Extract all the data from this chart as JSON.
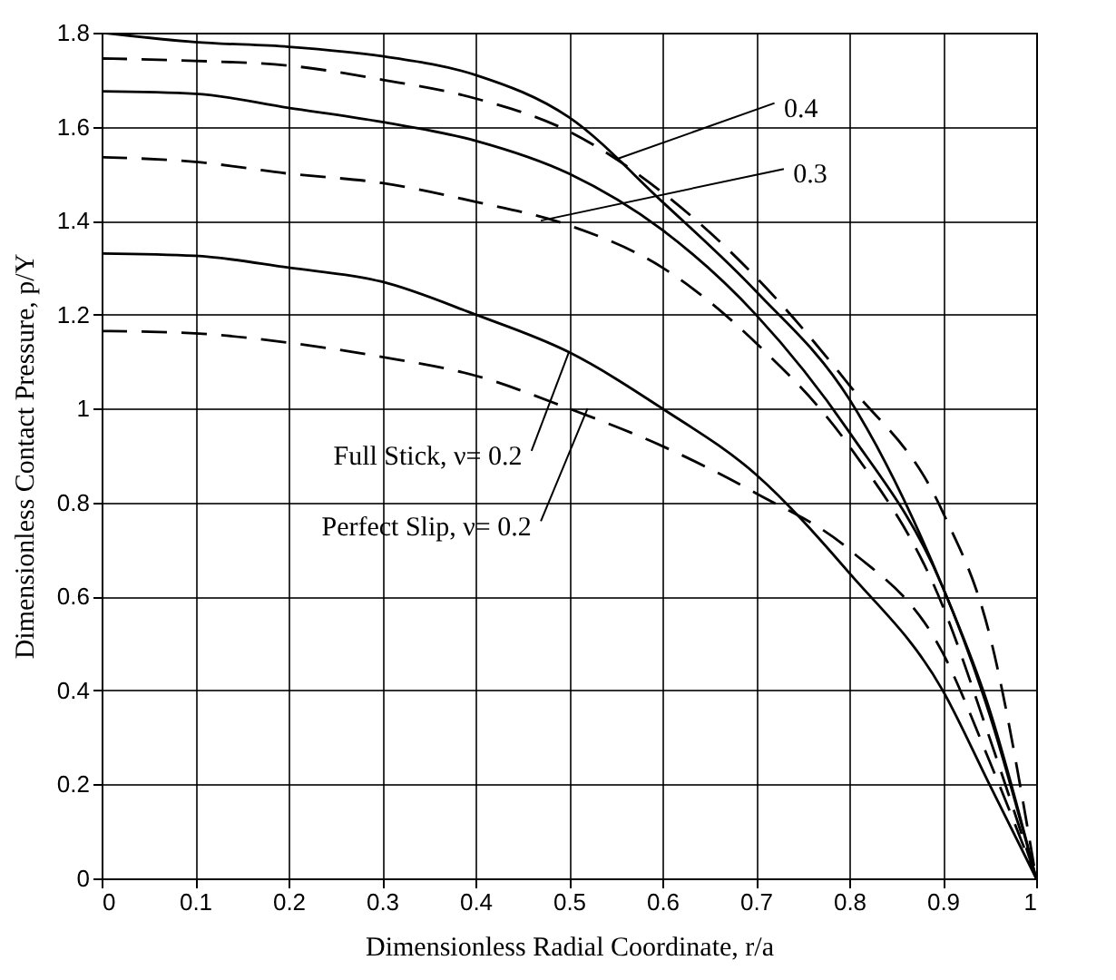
{
  "chart_data": {
    "type": "line",
    "xlabel": "Dimensionless Radial Coordinate, r/a",
    "ylabel": "Dimensionless Contact Pressure, p/Y",
    "x": [
      0,
      0.1,
      0.2,
      0.3,
      0.4,
      0.5,
      0.6,
      0.7,
      0.8,
      0.9,
      0.95,
      1
    ],
    "series": [
      {
        "color": "#000000",
        "line_style": "solid",
        "values": [
          1.8,
          1.78,
          1.77,
          1.75,
          1.71,
          1.62,
          1.44,
          1.25,
          1.02,
          0.62,
          0.36,
          0
        ]
      },
      {
        "color": "#000000",
        "line_style": "dashed",
        "values": [
          1.745,
          1.74,
          1.73,
          1.7,
          1.66,
          1.59,
          1.46,
          1.28,
          1.05,
          0.78,
          0.52,
          0
        ]
      },
      {
        "color": "#000000",
        "line_style": "solid",
        "values": [
          1.675,
          1.67,
          1.64,
          1.61,
          1.57,
          1.5,
          1.38,
          1.2,
          0.95,
          0.62,
          0.35,
          0
        ]
      },
      {
        "color": "#000000",
        "line_style": "dashed",
        "values": [
          1.535,
          1.525,
          1.5,
          1.48,
          1.44,
          1.39,
          1.3,
          1.14,
          0.92,
          0.58,
          0.3,
          0
        ]
      },
      {
        "color": "#000000",
        "line_style": "solid",
        "values": [
          1.33,
          1.325,
          1.3,
          1.27,
          1.2,
          1.12,
          1.0,
          0.86,
          0.65,
          0.4,
          0.2,
          0
        ]
      },
      {
        "color": "#000000",
        "line_style": "dashed",
        "values": [
          1.165,
          1.16,
          1.14,
          1.11,
          1.07,
          1.0,
          0.92,
          0.82,
          0.7,
          0.48,
          0.25,
          0
        ]
      }
    ],
    "annotations": [
      {
        "text": "0.4",
        "x": 0.55,
        "y": 1.53
      },
      {
        "text": "0.3",
        "x": 0.47,
        "y": 1.4
      },
      {
        "text": "Full Stick, ν= 0.2",
        "x": 0.5,
        "y": 1.12
      },
      {
        "text": "Perfect Slip, ν= 0.2",
        "x": 0.52,
        "y": 1.0
      }
    ],
    "xlim": [
      0,
      1
    ],
    "ylim": [
      0,
      1.8
    ],
    "xticks": [
      0,
      0.1,
      0.2,
      0.3,
      0.4,
      0.5,
      0.6,
      0.7,
      0.8,
      0.9,
      1
    ],
    "yticks": [
      0,
      0.2,
      0.4,
      0.6,
      0.8,
      1,
      1.2,
      1.4,
      1.6,
      1.8
    ],
    "grid": true
  }
}
